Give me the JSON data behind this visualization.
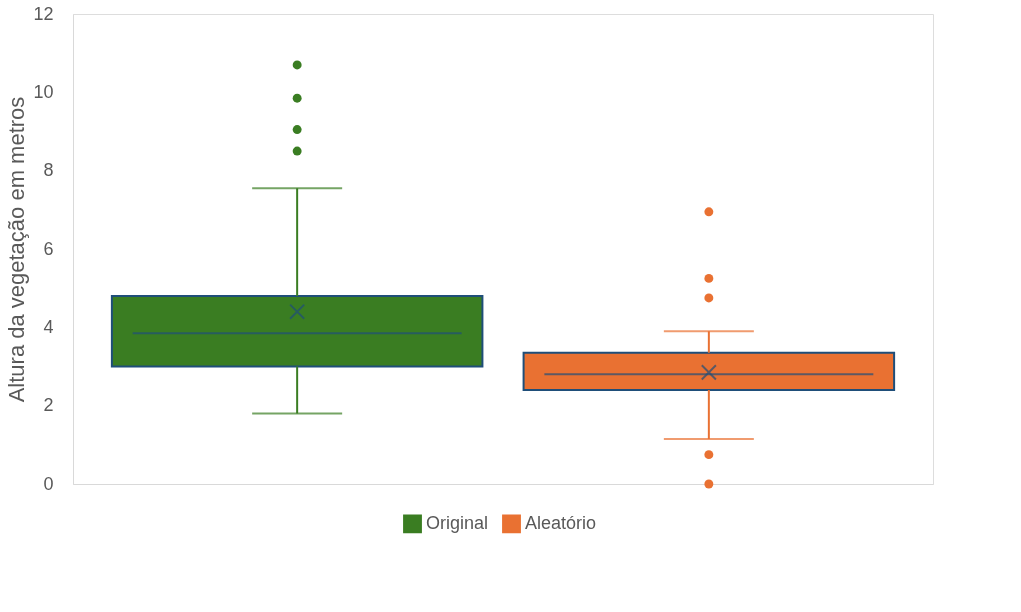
{
  "chart_data": {
    "type": "box",
    "ylabel": "Altura da vegetação em metros",
    "categories": [
      null
    ],
    "series": [
      {
        "name": "Original",
        "color": "#3a7d22",
        "boxes": [
          {
            "low": 1.8,
            "q1": 3.0,
            "median": 3.85,
            "q3": 4.8,
            "high": 7.55,
            "mean": 4.4,
            "outliers": [
              8.5,
              9.05,
              9.85,
              10.7
            ]
          }
        ]
      },
      {
        "name": "Aleatório",
        "color": "#e97132",
        "boxes": [
          {
            "low": 1.15,
            "q1": 2.4,
            "median": 2.8,
            "q3": 3.35,
            "high": 3.9,
            "mean": 2.85,
            "outliers": [
              0.0,
              0.75,
              4.75,
              5.25,
              6.95
            ]
          }
        ]
      }
    ],
    "ylim": [
      0,
      12
    ],
    "yticks": [
      0,
      2,
      4,
      6,
      8,
      10,
      12
    ],
    "grid": false,
    "legend": "bottom",
    "tick_labels": "y",
    "marker": "circle"
  }
}
